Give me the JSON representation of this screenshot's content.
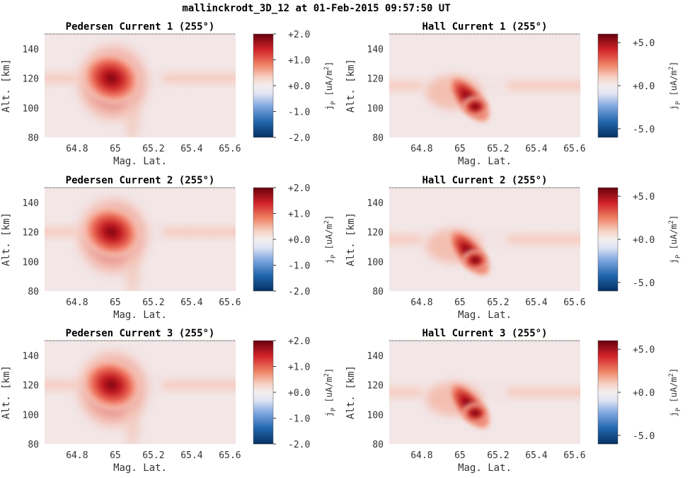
{
  "figure": {
    "title": "mallinckrodt_3D_12 at 01-Feb-2015 09:57:50 UT"
  },
  "chart_data": [
    {
      "type": "heatmap",
      "title": "Pedersen Current 1 (255°)",
      "xlabel": "Mag. Lat.",
      "ylabel": "Alt. [km]",
      "xlim": [
        64.63,
        65.63
      ],
      "ylim": [
        80,
        150
      ],
      "xticks": [
        "64.8",
        "65",
        "65.2",
        "65.4",
        "65.6"
      ],
      "yticks": [
        "80",
        "100",
        "120",
        "140"
      ],
      "colorbar": {
        "label": "j_P [uA/m^2]",
        "range": [
          -2.0,
          2.0
        ],
        "ticks": [
          "+2.0",
          "+1.0",
          "+0.0",
          "-1.0",
          "-2.0"
        ],
        "colormap": "red-white-blue",
        "high_color": "#67000d",
        "low_color": "#053061"
      },
      "features": [
        {
          "kind": "blob",
          "center_lat": 64.98,
          "center_alt": 120,
          "peak": 2.0
        },
        {
          "kind": "band",
          "alt": 120,
          "value": 0.4
        }
      ]
    },
    {
      "type": "heatmap",
      "title": "Hall Current 1 (255°)",
      "xlabel": "Mag. Lat.",
      "ylabel": "Alt. [km]",
      "xlim": [
        64.63,
        65.63
      ],
      "ylim": [
        80,
        150
      ],
      "xticks": [
        "64.8",
        "65",
        "65.2",
        "65.4",
        "65.6"
      ],
      "yticks": [
        "80",
        "100",
        "120",
        "140"
      ],
      "colorbar": {
        "label": "j_P [uA/m^2]",
        "range": [
          -6.0,
          6.0
        ],
        "ticks": [
          "+5.0",
          "+0.0",
          "-5.0"
        ],
        "colormap": "red-white-blue",
        "high_color": "#67000d",
        "low_color": "#053061"
      },
      "features": [
        {
          "kind": "arc",
          "center_lat": 65.08,
          "center_alt": 100,
          "peak": 6.0
        },
        {
          "kind": "band",
          "alt": 115,
          "value": 1.0
        }
      ]
    },
    {
      "type": "heatmap",
      "title": "Pedersen Current 2 (255°)",
      "xlabel": "Mag. Lat.",
      "ylabel": "Alt. [km]",
      "xlim": [
        64.63,
        65.63
      ],
      "ylim": [
        80,
        150
      ],
      "xticks": [
        "64.8",
        "65",
        "65.2",
        "65.4",
        "65.6"
      ],
      "yticks": [
        "80",
        "100",
        "120",
        "140"
      ],
      "colorbar": {
        "label": "j_P [uA/m^2]",
        "range": [
          -2.0,
          2.0
        ],
        "ticks": [
          "+2.0",
          "+1.0",
          "+0.0",
          "-1.0",
          "-2.0"
        ],
        "colormap": "red-white-blue",
        "high_color": "#67000d",
        "low_color": "#053061"
      },
      "features": [
        {
          "kind": "blob",
          "center_lat": 64.98,
          "center_alt": 120,
          "peak": 2.0
        },
        {
          "kind": "band",
          "alt": 120,
          "value": 0.4
        }
      ]
    },
    {
      "type": "heatmap",
      "title": "Hall Current 2 (255°)",
      "xlabel": "Mag. Lat.",
      "ylabel": "Alt. [km]",
      "xlim": [
        64.63,
        65.63
      ],
      "ylim": [
        80,
        150
      ],
      "xticks": [
        "64.8",
        "65",
        "65.2",
        "65.4",
        "65.6"
      ],
      "yticks": [
        "80",
        "100",
        "120",
        "140"
      ],
      "colorbar": {
        "label": "j_P [uA/m^2]",
        "range": [
          -6.0,
          6.0
        ],
        "ticks": [
          "+5.0",
          "+0.0",
          "-5.0"
        ],
        "colormap": "red-white-blue",
        "high_color": "#67000d",
        "low_color": "#053061"
      },
      "features": [
        {
          "kind": "arc",
          "center_lat": 65.08,
          "center_alt": 100,
          "peak": 6.0
        },
        {
          "kind": "band",
          "alt": 115,
          "value": 1.0
        }
      ]
    },
    {
      "type": "heatmap",
      "title": "Pedersen Current 3 (255°)",
      "xlabel": "Mag. Lat.",
      "ylabel": "Alt. [km]",
      "xlim": [
        64.63,
        65.63
      ],
      "ylim": [
        80,
        150
      ],
      "xticks": [
        "64.8",
        "65",
        "65.2",
        "65.4",
        "65.6"
      ],
      "yticks": [
        "80",
        "100",
        "120",
        "140"
      ],
      "colorbar": {
        "label": "j_P [uA/m^2]",
        "range": [
          -2.0,
          2.0
        ],
        "ticks": [
          "+2.0",
          "+1.0",
          "+0.0",
          "-1.0",
          "-2.0"
        ],
        "colormap": "red-white-blue",
        "high_color": "#67000d",
        "low_color": "#053061"
      },
      "features": [
        {
          "kind": "blob",
          "center_lat": 64.98,
          "center_alt": 120,
          "peak": 2.0
        },
        {
          "kind": "band",
          "alt": 120,
          "value": 0.4
        }
      ]
    },
    {
      "type": "heatmap",
      "title": "Hall Current 3 (255°)",
      "xlabel": "Mag. Lat.",
      "ylabel": "Alt. [km]",
      "xlim": [
        64.63,
        65.63
      ],
      "ylim": [
        80,
        150
      ],
      "xticks": [
        "64.8",
        "65",
        "65.2",
        "65.4",
        "65.6"
      ],
      "yticks": [
        "80",
        "100",
        "120",
        "140"
      ],
      "colorbar": {
        "label": "j_P [uA/m^2]",
        "range": [
          -6.0,
          6.0
        ],
        "ticks": [
          "+5.0",
          "+0.0",
          "-5.0"
        ],
        "colormap": "red-white-blue",
        "high_color": "#67000d",
        "low_color": "#053061"
      },
      "features": [
        {
          "kind": "arc",
          "center_lat": 65.08,
          "center_alt": 100,
          "peak": 6.0
        },
        {
          "kind": "band",
          "alt": 115,
          "value": 1.0
        }
      ]
    }
  ]
}
